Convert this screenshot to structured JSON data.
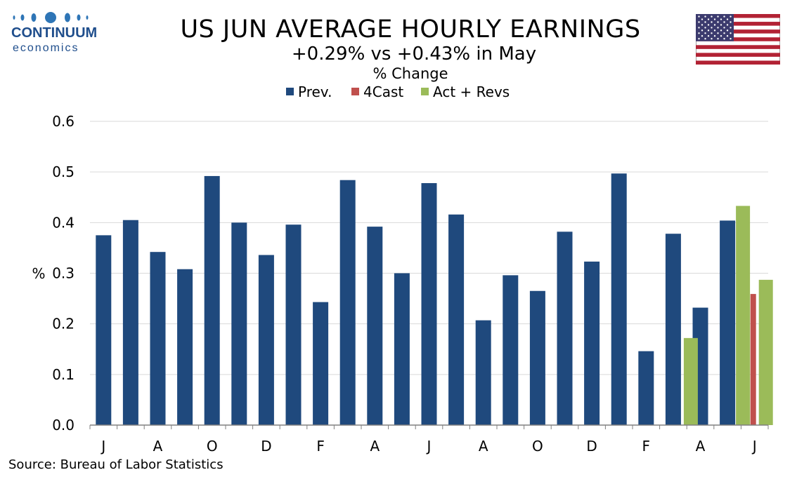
{
  "logo": {
    "brand": "CONTINUUM",
    "sub": "economics"
  },
  "flag_icon": "us-flag-icon",
  "title": "US JUN AVERAGE HOURLY EARNINGS",
  "subtitle": "+0.29% vs +0.43% in May",
  "source": "Source: Bureau of Labor Statistics",
  "chart_data": {
    "type": "bar",
    "title": "US JUN AVERAGE HOURLY EARNINGS",
    "subtitle": "% Change",
    "ylabel": "%",
    "xlabel": "",
    "ylim": [
      0,
      0.6
    ],
    "yticks": [
      "0.0",
      "0.1",
      "0.2",
      "0.3",
      "0.4",
      "0.5",
      "0.6"
    ],
    "xtick_labels": [
      "J",
      "A",
      "O",
      "D",
      "F",
      "A",
      "J",
      "A",
      "O",
      "D",
      "F",
      "A",
      "J"
    ],
    "grid": true,
    "legend_placement": "top-center",
    "series": [
      {
        "name": "Prev.",
        "color": "#1f497d",
        "values": [
          0.375,
          0.405,
          0.342,
          0.308,
          0.492,
          0.4,
          0.336,
          0.396,
          0.243,
          0.484,
          0.392,
          0.3,
          0.478,
          0.416,
          0.207,
          0.296,
          0.265,
          0.382,
          0.323,
          0.497,
          0.146,
          0.378,
          0.232,
          0.404
        ]
      },
      {
        "name": "4Cast",
        "color": "#c0504d",
        "values": [
          null,
          null,
          null,
          null,
          null,
          null,
          null,
          null,
          null,
          null,
          null,
          null,
          null,
          null,
          null,
          null,
          null,
          null,
          null,
          null,
          null,
          null,
          null,
          null,
          0.259
        ]
      },
      {
        "name": "Act + Revs",
        "color": "#9bbb59",
        "values": [
          null,
          null,
          null,
          null,
          null,
          null,
          null,
          null,
          null,
          null,
          null,
          null,
          null,
          null,
          null,
          null,
          null,
          null,
          null,
          null,
          null,
          null,
          0.172,
          0.433,
          0.287
        ]
      }
    ]
  }
}
